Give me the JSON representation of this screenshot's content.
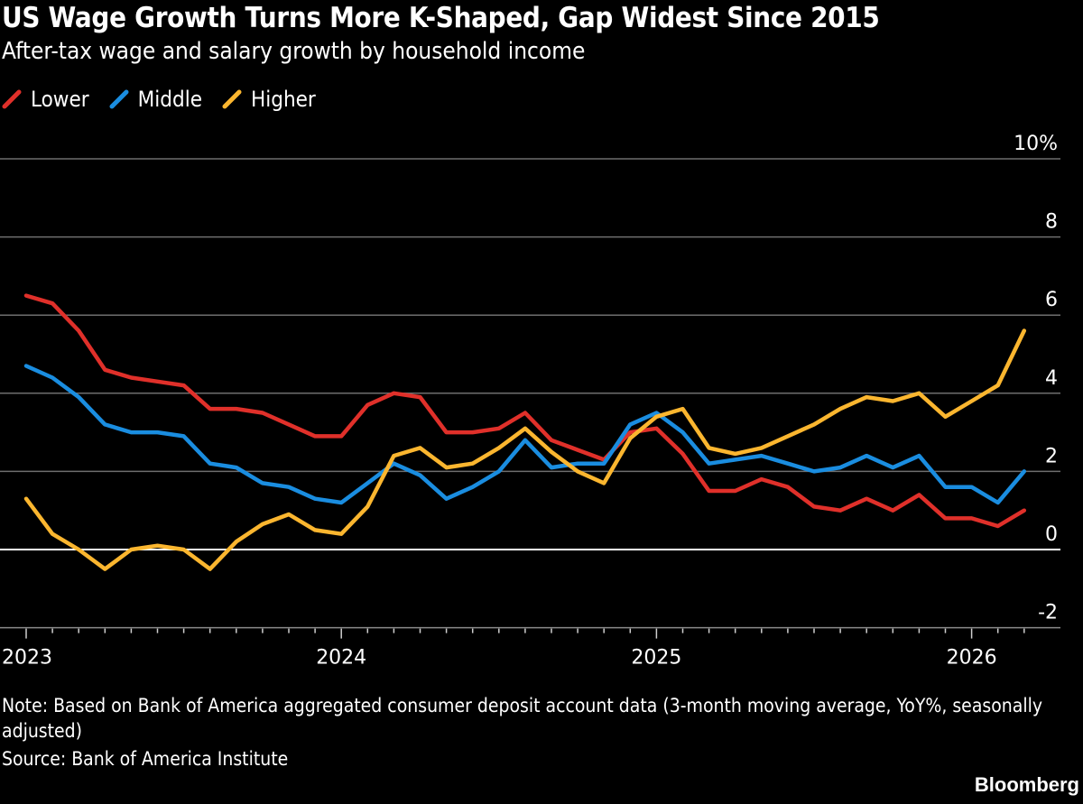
{
  "header": {
    "title": "US Wage Growth Turns More K-Shaped, Gap Widest Since 2015",
    "subtitle": "After-tax wage and salary growth by household income"
  },
  "legend": [
    {
      "label": "Lower",
      "color": "#e0302a"
    },
    {
      "label": "Middle",
      "color": "#1a8de0"
    },
    {
      "label": "Higher",
      "color": "#fbb62f"
    }
  ],
  "footer": {
    "note": "Note: Based on Bank of America aggregated consumer deposit account data (3-month moving average, YoY%, seasonally adjusted)",
    "source": "Source: Bank of America Institute",
    "brand": "Bloomberg"
  },
  "chart_data": {
    "type": "line",
    "title": "US Wage Growth Turns More K-Shaped, Gap Widest Since 2015",
    "subtitle": "After-tax wage and salary growth by household income",
    "xlabel": "",
    "ylabel": "",
    "x_start": "2023-01",
    "x_frequency": "monthly",
    "x": [
      "2023-01",
      "2023-02",
      "2023-03",
      "2023-04",
      "2023-05",
      "2023-06",
      "2023-07",
      "2023-08",
      "2023-09",
      "2023-10",
      "2023-11",
      "2023-12",
      "2024-01",
      "2024-02",
      "2024-03",
      "2024-04",
      "2024-05",
      "2024-06",
      "2024-07",
      "2024-08",
      "2024-09",
      "2024-10",
      "2024-11",
      "2024-12",
      "2025-01",
      "2025-02",
      "2025-03",
      "2025-04",
      "2025-05",
      "2025-06",
      "2025-07",
      "2025-08",
      "2025-09",
      "2025-10",
      "2025-11",
      "2025-12",
      "2026-01",
      "2026-02",
      "2026-03"
    ],
    "x_tick_labels": [
      "2023",
      "2024",
      "2025",
      "2026"
    ],
    "y_ticks": [
      -2,
      0,
      2,
      4,
      6,
      8,
      10
    ],
    "y_tick_labels": [
      "-2",
      "0",
      "2",
      "4",
      "6",
      "8",
      "10%"
    ],
    "ylim": [
      -2,
      10
    ],
    "xlim": [
      "2023-01",
      "2026-04"
    ],
    "grid": true,
    "y_axis_side": "right",
    "legend_position": "top-left",
    "series": [
      {
        "name": "Lower",
        "color": "#e0302a",
        "values": [
          6.5,
          6.3,
          5.6,
          4.6,
          4.4,
          4.3,
          4.2,
          3.6,
          3.6,
          3.5,
          3.2,
          2.9,
          2.9,
          3.7,
          4.0,
          3.9,
          3.0,
          3.0,
          3.1,
          3.5,
          2.8,
          2.55,
          2.3,
          3.0,
          3.1,
          2.45,
          1.5,
          1.5,
          1.8,
          1.6,
          1.1,
          1.0,
          1.3,
          1.0,
          1.4,
          0.8,
          0.8,
          0.6,
          1.0
        ]
      },
      {
        "name": "Middle",
        "color": "#1a8de0",
        "values": [
          4.7,
          4.4,
          3.9,
          3.2,
          3.0,
          3.0,
          2.9,
          2.2,
          2.1,
          1.7,
          1.6,
          1.3,
          1.2,
          1.7,
          2.2,
          1.9,
          1.3,
          1.6,
          2.0,
          2.8,
          2.1,
          2.2,
          2.2,
          3.2,
          3.5,
          3.0,
          2.2,
          2.3,
          2.4,
          2.2,
          2.0,
          2.1,
          2.4,
          2.1,
          2.4,
          1.6,
          1.6,
          1.2,
          2.0
        ]
      },
      {
        "name": "Higher",
        "color": "#fbb62f",
        "values": [
          1.3,
          0.4,
          0.0,
          -0.5,
          0.0,
          0.1,
          0.0,
          -0.5,
          0.2,
          0.65,
          0.9,
          0.5,
          0.4,
          1.1,
          2.4,
          2.6,
          2.1,
          2.2,
          2.6,
          3.1,
          2.5,
          2.0,
          1.7,
          2.85,
          3.4,
          3.6,
          2.6,
          2.45,
          2.6,
          2.9,
          3.2,
          3.6,
          3.9,
          3.8,
          4.0,
          3.4,
          3.8,
          4.2,
          5.6
        ]
      }
    ]
  }
}
